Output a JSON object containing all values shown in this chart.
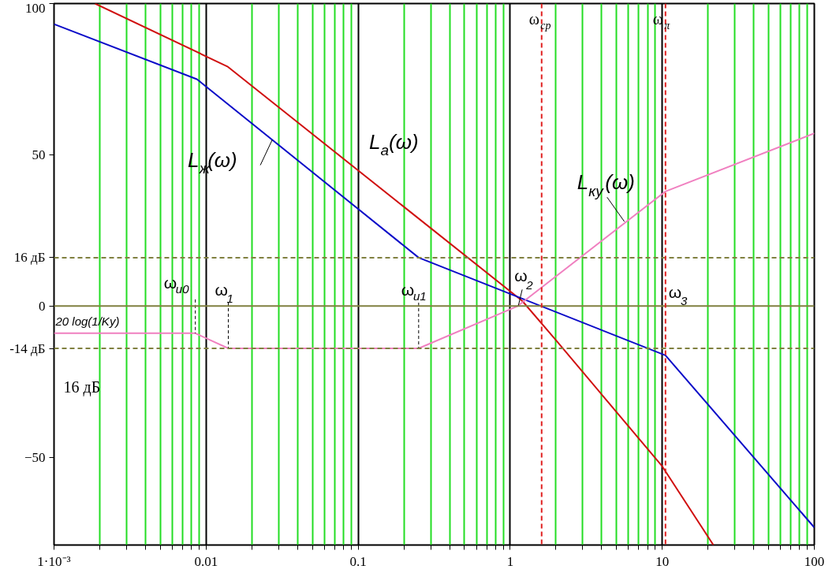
{
  "chart_data": {
    "type": "line",
    "series": [
      {
        "color": "#d01010",
        "x": [
          0.00186,
          0.0138,
          1.2,
          2,
          10,
          21.7
        ],
        "values": [
          100,
          79.2,
          1.7,
          -11.3,
          -53,
          -79
        ]
      },
      {
        "color": "#0a0ac8",
        "x": [
          0.001,
          0.0087,
          0.25,
          10.5,
          100
        ],
        "values": [
          93.2,
          75,
          16,
          -16.3,
          -73.2
        ]
      },
      {
        "color": "#f080c0",
        "x": [
          0.001,
          0.0085,
          0.014,
          0.25,
          1.12,
          10.5,
          100
        ],
        "values": [
          -9,
          -9,
          -14,
          -14,
          0,
          37.9,
          57.1
        ]
      }
    ],
    "xlim": [
      0.001,
      100
    ],
    "ylim": [
      -79,
      100
    ],
    "xticks": [
      {
        "value": 0.001,
        "label": "1·10⁻³"
      },
      {
        "value": 0.002,
        "label": null
      },
      {
        "value": 0.003,
        "label": null
      },
      {
        "value": 0.004,
        "label": null
      },
      {
        "value": 0.005,
        "label": null
      },
      {
        "value": 0.006,
        "label": null
      },
      {
        "value": 0.007,
        "label": null
      },
      {
        "value": 0.008,
        "label": null
      },
      {
        "value": 0.009,
        "label": null
      },
      0.01,
      {
        "value": 0.02,
        "label": null
      },
      {
        "value": 0.03,
        "label": null
      },
      {
        "value": 0.04,
        "label": null
      },
      {
        "value": 0.05,
        "label": null
      },
      {
        "value": 0.06,
        "label": null
      },
      {
        "value": 0.07,
        "label": null
      },
      {
        "value": 0.08,
        "label": null
      },
      {
        "value": 0.09,
        "label": null
      },
      0.1,
      {
        "value": 0.2,
        "label": null
      },
      {
        "value": 0.3,
        "label": null
      },
      {
        "value": 0.4,
        "label": null
      },
      {
        "value": 0.5,
        "label": null
      },
      {
        "value": 0.6,
        "label": null
      },
      {
        "value": 0.7,
        "label": null
      },
      {
        "value": 0.8,
        "label": null
      },
      {
        "value": 0.9,
        "label": null
      },
      1,
      {
        "value": 2,
        "label": null
      },
      {
        "value": 3,
        "label": null
      },
      {
        "value": 4,
        "label": null
      },
      {
        "value": 5,
        "label": null
      },
      {
        "value": 6,
        "label": null
      },
      {
        "value": 7,
        "label": null
      },
      {
        "value": 8,
        "label": null
      },
      {
        "value": 9,
        "label": null
      },
      10,
      {
        "value": 20,
        "label": null
      },
      {
        "value": 30,
        "label": null
      },
      {
        "value": 40,
        "label": null
      },
      {
        "value": 50,
        "label": null
      },
      {
        "value": 60,
        "label": null
      },
      {
        "value": 70,
        "label": null
      },
      {
        "value": 80,
        "label": null
      },
      {
        "value": 90,
        "label": null
      },
      100
    ],
    "yticks": [
      100,
      50,
      {
        "value": 16,
        "label": "16 дБ"
      },
      0,
      {
        "value": -14,
        "label": "-14 дБ"
      },
      -50
    ],
    "log": "x",
    "grid": "x",
    "line_style": "solid",
    "ref_lines": [
      {
        "axis": "y",
        "value": 0,
        "color": "#808040",
        "line_style": "solid"
      },
      {
        "axis": "y",
        "value": 16,
        "color": "#808040",
        "line_style": "dashed"
      },
      {
        "axis": "y",
        "value": -14,
        "color": "#808040",
        "line_style": "dashed"
      },
      {
        "axis": "x",
        "value": 1.61,
        "color": "#e02020",
        "line_style": "dashed",
        "label": "ω$_{ср}$"
      },
      {
        "axis": "x",
        "value": 10.5,
        "color": "#e02020",
        "line_style": "dashed",
        "label": "ω$_{π}$"
      }
    ],
    "annotations": [
      {
        "text": "L$_{а}$(ω)",
        "x": 0.15,
        "y": 37.6
      },
      {
        "text": "L$_{ж}$(ω)",
        "x": 0.0272,
        "y": 54.9
      },
      {
        "text": "L$_{ку}$(ω)",
        "x": 5.64,
        "y": 27.9
      },
      {
        "text": "ω$_{и0}$",
        "x": 0.0085,
        "y": -9
      },
      {
        "text": "ω$_{1}$",
        "x": 0.014,
        "y": -14
      },
      {
        "text": "ω$_{и1}$",
        "x": 0.25,
        "y": -14
      },
      {
        "text": "ω$_{2}$",
        "x": 1.13,
        "y": 0
      },
      {
        "text": "ω$_{3}$",
        "x": 10.5,
        "y": -16.3
      },
      {
        "text": "20 log(1/Kу)",
        "x": 0.001,
        "y": -9
      },
      "16 дБ"
    ]
  }
}
